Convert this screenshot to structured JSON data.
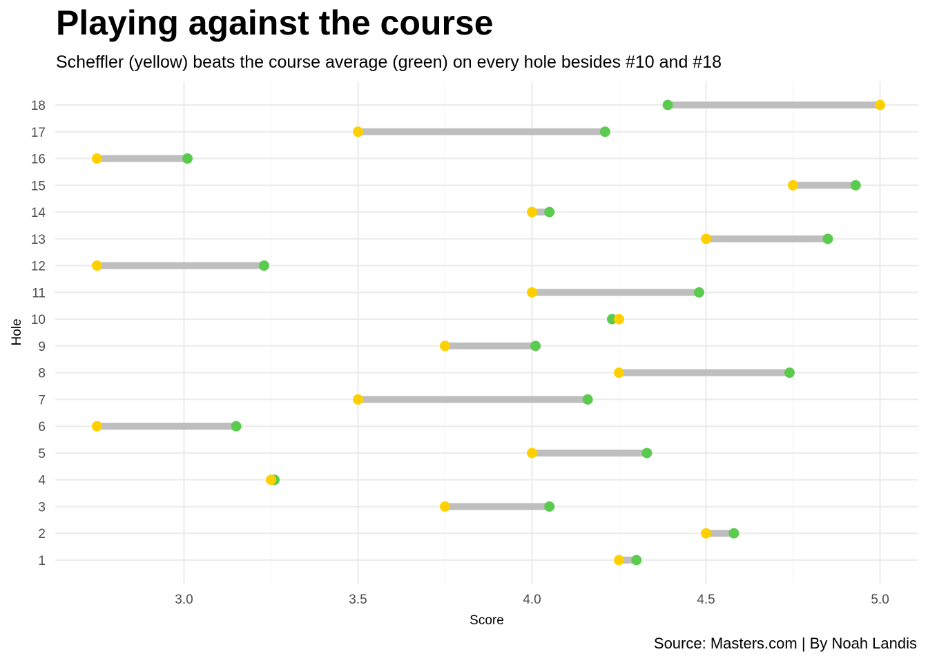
{
  "chart_data": {
    "type": "dumbbell",
    "title": "Playing against the course",
    "subtitle": "Scheffler (yellow) beats the course average (green) on every hole besides #10 and #18",
    "caption": "Source: Masters.com | By Noah Landis",
    "xlabel": "Score",
    "ylabel": "Hole",
    "xlim": [
      2.63,
      5.11
    ],
    "x_ticks": [
      "3.0",
      "3.5",
      "4.0",
      "4.5",
      "5.0"
    ],
    "x_tick_values": [
      3.0,
      3.5,
      4.0,
      4.5,
      5.0
    ],
    "grid": true,
    "colors": {
      "scheffler": "#FFD000",
      "course": "#5BCB4F",
      "segment": "#BEBEBE",
      "grid": "#EBEBEB",
      "axis_text": "#4D4D4D"
    },
    "holes": [
      {
        "hole": "1",
        "scheffler": 4.25,
        "course": 4.3
      },
      {
        "hole": "2",
        "scheffler": 4.5,
        "course": 4.58
      },
      {
        "hole": "3",
        "scheffler": 3.75,
        "course": 4.05
      },
      {
        "hole": "4",
        "scheffler": 3.25,
        "course": 3.26
      },
      {
        "hole": "5",
        "scheffler": 4.0,
        "course": 4.33
      },
      {
        "hole": "6",
        "scheffler": 2.75,
        "course": 3.15
      },
      {
        "hole": "7",
        "scheffler": 3.5,
        "course": 4.16
      },
      {
        "hole": "8",
        "scheffler": 4.25,
        "course": 4.74
      },
      {
        "hole": "9",
        "scheffler": 3.75,
        "course": 4.01
      },
      {
        "hole": "10",
        "scheffler": 4.25,
        "course": 4.23
      },
      {
        "hole": "11",
        "scheffler": 4.0,
        "course": 4.48
      },
      {
        "hole": "12",
        "scheffler": 2.75,
        "course": 3.23
      },
      {
        "hole": "13",
        "scheffler": 4.5,
        "course": 4.85
      },
      {
        "hole": "14",
        "scheffler": 4.0,
        "course": 4.05
      },
      {
        "hole": "15",
        "scheffler": 4.75,
        "course": 4.93
      },
      {
        "hole": "16",
        "scheffler": 2.75,
        "course": 3.01
      },
      {
        "hole": "17",
        "scheffler": 3.5,
        "course": 4.21
      },
      {
        "hole": "18",
        "scheffler": 5.0,
        "course": 4.39
      }
    ]
  }
}
